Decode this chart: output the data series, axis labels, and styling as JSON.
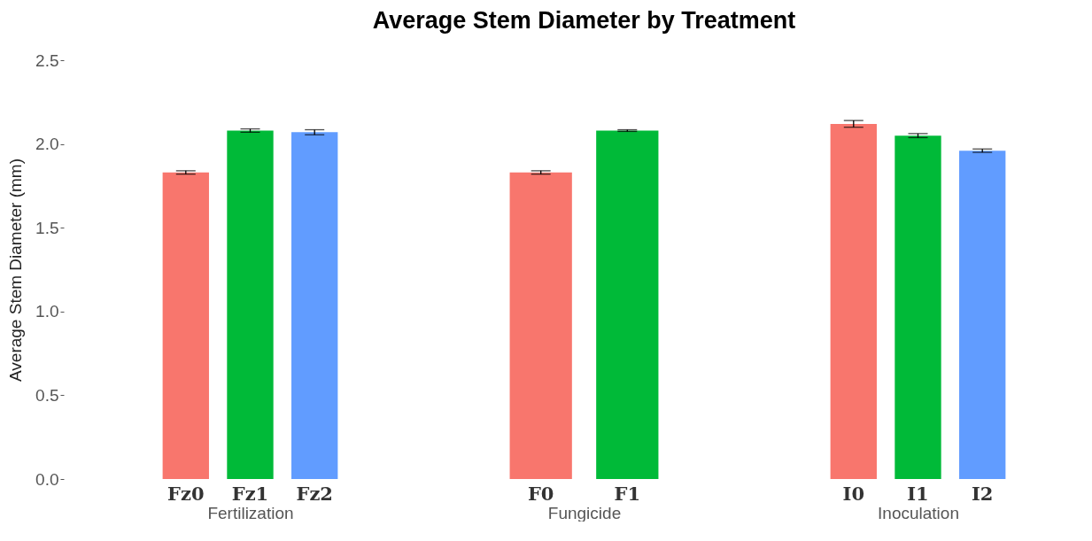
{
  "chart_data": [
    {
      "type": "bar",
      "ylabel": "Average Stem Diameter (mm)",
      "xlabel": "Fertilization",
      "categories": [
        "Fz0",
        "Fz1",
        "Fz2"
      ],
      "values": [
        1.83,
        2.08,
        2.07
      ],
      "colors": [
        "#f8766d",
        "#00ba38",
        "#619cff"
      ],
      "errors": [
        0.01,
        0.01,
        0.015
      ],
      "ylim": [
        0,
        2.5
      ],
      "yticks": [
        {
          "value": 0,
          "label": "0.0"
        },
        0.5,
        {
          "value": 1,
          "label": "1.0"
        },
        1.5,
        {
          "value": 2,
          "label": "2.0"
        },
        2.5
      ]
    },
    {
      "type": "bar",
      "title": "Average Stem Diameter by Treatment",
      "xlabel": "Fungicide",
      "categories": [
        "F0",
        "F1"
      ],
      "values": [
        1.83,
        2.08
      ],
      "colors": [
        "#f8766d",
        "#00ba38"
      ],
      "errors": [
        0.01,
        0.005
      ],
      "ylim": [
        0,
        2.5
      ],
      "tick_labels": "x"
    },
    {
      "type": "bar",
      "xlabel": "Inoculation",
      "categories": [
        "I0",
        "I1",
        "I2"
      ],
      "values": [
        2.12,
        2.05,
        1.96
      ],
      "colors": [
        "#f8766d",
        "#00ba38",
        "#619cff"
      ],
      "errors": [
        0.02,
        0.012,
        0.01
      ],
      "ylim": [
        0,
        2.5
      ],
      "tick_labels": "x"
    }
  ]
}
